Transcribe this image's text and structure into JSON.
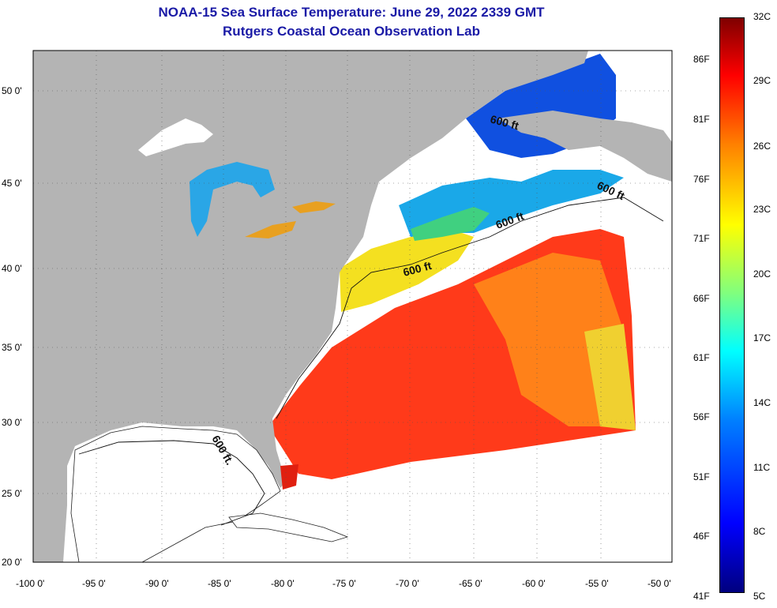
{
  "header": {
    "title": "NOAA-15 Sea Surface Temperature:  June 29, 2022 2339 GMT",
    "subtitle": "Rutgers Coastal Ocean Observation Lab"
  },
  "map": {
    "lon_ticks": [
      "-100 0'",
      "-95 0'",
      "-90 0'",
      "-85 0'",
      "-80 0'",
      "-75 0'",
      "-70 0'",
      "-65 0'",
      "-60 0'",
      "-55 0'",
      "-50 0'"
    ],
    "lat_ticks": [
      "50 0'",
      "45 0'",
      "40 0'",
      "35 0'",
      "30 0'",
      "25 0'",
      "20 0'"
    ],
    "contour_label": "600 ft",
    "contour_label_gulf": "600 ft.",
    "colors": {
      "land": "#b4b4b4",
      "cloud": "#ffffff",
      "gulf_water": "#ffffff"
    }
  },
  "colorbar": {
    "fahrenheit": [
      "86F",
      "81F",
      "76F",
      "71F",
      "66F",
      "61F",
      "56F",
      "51F",
      "46F",
      "41F"
    ],
    "celsius": [
      "32C",
      "29C",
      "26C",
      "23C",
      "20C",
      "17C",
      "14C",
      "11C",
      "8C",
      "5C"
    ]
  }
}
